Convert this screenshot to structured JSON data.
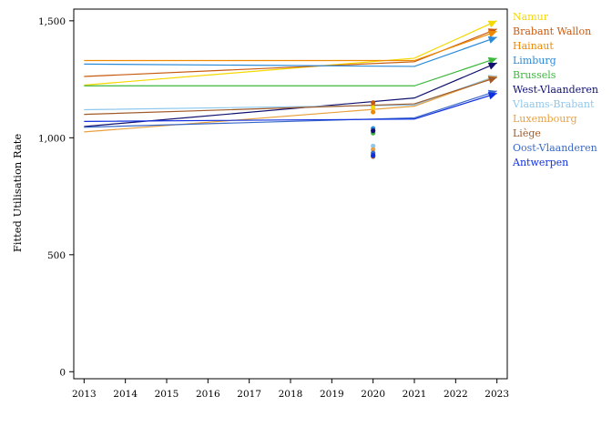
{
  "chart_data": {
    "type": "line",
    "title": "",
    "xlabel": "",
    "ylabel": "Fitted Utilisation Rate",
    "x_ticks": [
      "2013",
      "2014",
      "2015",
      "2016",
      "2017",
      "2018",
      "2019",
      "2020",
      "2021",
      "2022",
      "2023"
    ],
    "y_ticks": [
      "0",
      "500",
      "1,000",
      "1,500"
    ],
    "xlim": [
      2012.75,
      2023.25
    ],
    "ylim": [
      -30,
      1550
    ],
    "grid": false,
    "legend_position": "right",
    "x_points": [
      2013,
      2021,
      2023
    ],
    "series": [
      {
        "name": "Namur",
        "color": "#f5d800",
        "values": [
          1225,
          1340,
          1500
        ],
        "point_2020": 1130
      },
      {
        "name": "Brabant Wallon",
        "color": "#c85a10",
        "values": [
          1262,
          1325,
          1465
        ],
        "point_2020": 1150
      },
      {
        "name": "Hainaut",
        "color": "#ee8a00",
        "values": [
          1330,
          1330,
          1455
        ],
        "point_2020": 1110
      },
      {
        "name": "Limburg",
        "color": "#2a8ad8",
        "values": [
          1315,
          1305,
          1430
        ],
        "point_2020": 1040
      },
      {
        "name": "Brussels",
        "color": "#3cb83c",
        "values": [
          1222,
          1222,
          1340
        ],
        "point_2020": 1020
      },
      {
        "name": "West-Vlaanderen",
        "color": "#101070",
        "values": [
          1048,
          1170,
          1320
        ],
        "point_2020": 1030
      },
      {
        "name": "Vlaams-Brabant",
        "color": "#8ec8ee",
        "values": [
          1120,
          1140,
          1265
        ],
        "point_2020": 965
      },
      {
        "name": "Luxembourg",
        "color": "#e8a040",
        "values": [
          1025,
          1135,
          1262
        ],
        "point_2020": 950
      },
      {
        "name": "Liège",
        "color": "#a05a28",
        "values": [
          1100,
          1145,
          1258
        ],
        "point_2020": 920
      },
      {
        "name": "Oost-Vlaanderen",
        "color": "#3a6ac8",
        "values": [
          1045,
          1085,
          1200
        ],
        "point_2020": 935
      },
      {
        "name": "Antwerpen",
        "color": "#1030e0",
        "values": [
          1070,
          1080,
          1190
        ],
        "point_2020": 925
      }
    ]
  }
}
